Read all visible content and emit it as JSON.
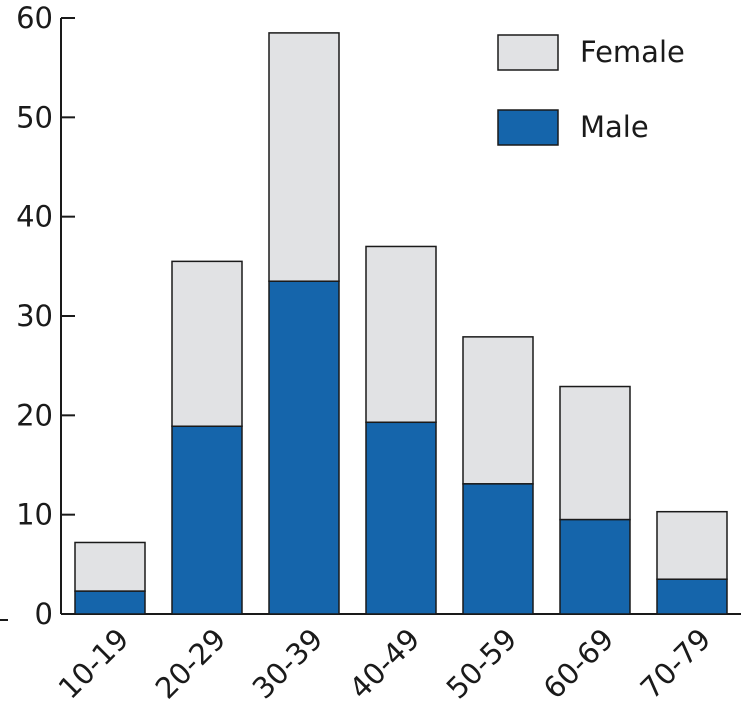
{
  "chart_data": {
    "type": "bar",
    "stacked": true,
    "categories": [
      "10-19",
      "20-29",
      "30-39",
      "40-49",
      "50-59",
      "60-69",
      "70-79"
    ],
    "series": [
      {
        "name": "Male",
        "values": [
          2.3,
          18.9,
          33.5,
          19.3,
          13.1,
          9.5,
          3.5
        ]
      },
      {
        "name": "Female",
        "values": [
          4.9,
          16.6,
          25.0,
          17.7,
          14.8,
          13.4,
          6.8
        ]
      }
    ],
    "totals": [
      7.2,
      35.5,
      58.5,
      37.0,
      27.9,
      22.9,
      10.3
    ],
    "ylim": [
      0,
      60
    ],
    "yticks": [
      "0",
      "10",
      "20",
      "30",
      "40",
      "50",
      "60"
    ],
    "title": "",
    "xlabel": "",
    "ylabel": "",
    "legend": {
      "placement": "top-right",
      "entries": [
        "Female",
        "Male"
      ]
    },
    "colors": {
      "Male": "#1565ab",
      "Female": "#e1e2e4",
      "outline": "#1a1a1a",
      "axis": "#1a1a1a"
    },
    "grid": false
  }
}
